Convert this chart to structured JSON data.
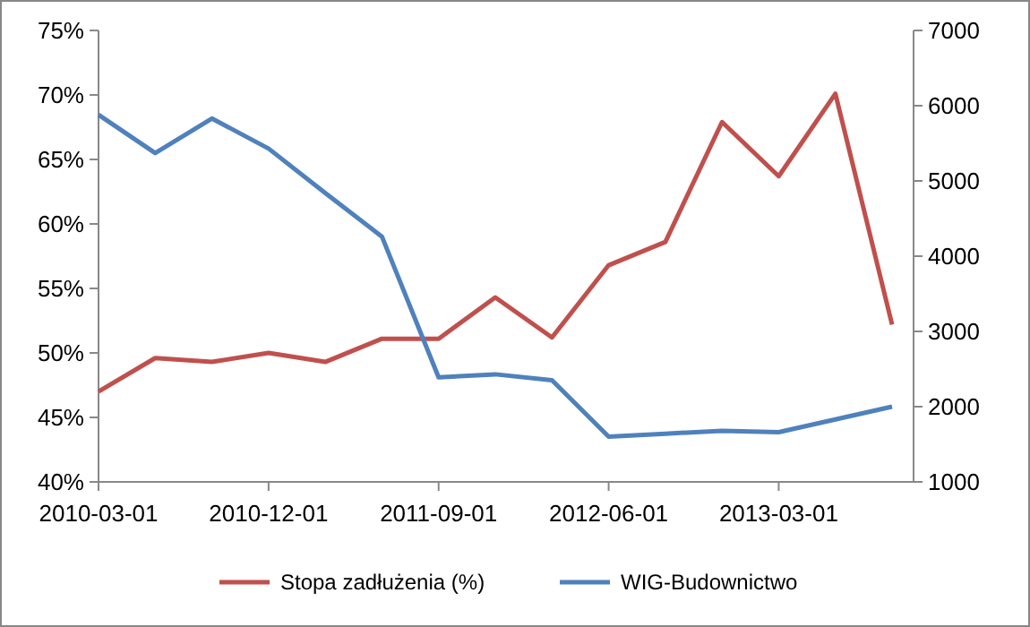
{
  "chart_data": {
    "type": "line",
    "categories": [
      "2010-03-01",
      null,
      null,
      "2010-12-01",
      null,
      null,
      "2011-09-01",
      null,
      null,
      "2012-06-01",
      null,
      null,
      "2013-03-01",
      null,
      null
    ],
    "series": [
      {
        "name": "Stopa zadłużenia (%)",
        "color": "#c0504d",
        "values": [
          47,
          49.6,
          49.3,
          50,
          49.3,
          51.1,
          51.1,
          54.3,
          51.2,
          56.8,
          58.6,
          67.9,
          63.7,
          70.1,
          52.2
        ]
      },
      {
        "name": "WIG-Budownictwo",
        "color": "#4f81bd",
        "axis": "y2",
        "values": [
          5880,
          5370,
          5830,
          5430,
          4840,
          4260,
          2390,
          2430,
          2350,
          1600,
          1640,
          1680,
          1660,
          1830,
          2000
        ]
      }
    ],
    "ylim": [
      40,
      75
    ],
    "yticks": [
      {
        "value": 40,
        "label": "40%"
      },
      {
        "value": 45,
        "label": "45%"
      },
      {
        "value": 50,
        "label": "50%"
      },
      {
        "value": 55,
        "label": "55%"
      },
      {
        "value": 60,
        "label": "60%"
      },
      {
        "value": 65,
        "label": "65%"
      },
      {
        "value": 70,
        "label": "70%"
      },
      {
        "value": 75,
        "label": "75%"
      }
    ],
    "y2lim": [
      1000,
      7000
    ],
    "y2ticks": [
      1000,
      2000,
      3000,
      4000,
      5000,
      6000,
      7000
    ],
    "legend": "bottom",
    "grid": false,
    "marker": "none",
    "line_style": "solid"
  }
}
